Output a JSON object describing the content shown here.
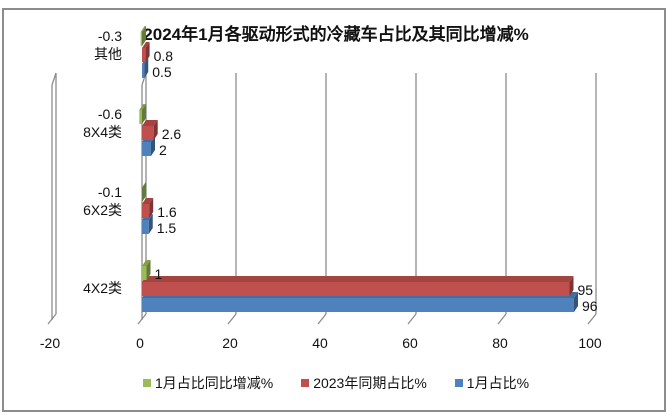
{
  "chart_data": {
    "type": "bar",
    "orientation": "horizontal",
    "style": "3d-clustered",
    "title": "2024年1月各驱动形式的冷藏车占比及其同比增减%",
    "categories": [
      "4X2类",
      "6X2类",
      "8X4类",
      "其他"
    ],
    "series": [
      {
        "name": "1月占比同比增减%",
        "color": "#9bbb59",
        "values": [
          1,
          -0.1,
          -0.6,
          -0.3
        ]
      },
      {
        "name": "2023年同期占比%",
        "color": "#c0504d",
        "values": [
          95,
          1.6,
          2.6,
          0.8
        ]
      },
      {
        "name": "1月占比%",
        "color": "#4f81bd",
        "values": [
          96,
          1.5,
          2,
          0.5
        ]
      }
    ],
    "xlabel": "",
    "ylabel": "",
    "xlim": [
      -20,
      100
    ],
    "x_ticks": [
      "-20",
      "0",
      "20",
      "40",
      "60",
      "80",
      "100"
    ],
    "grid": true,
    "legend_position": "bottom"
  },
  "legend": [
    {
      "label": "1月占比同比增减%",
      "color": "#9bbb59"
    },
    {
      "label": "2023年同期占比%",
      "color": "#c0504d"
    },
    {
      "label": "1月占比%",
      "color": "#4f81bd"
    }
  ]
}
